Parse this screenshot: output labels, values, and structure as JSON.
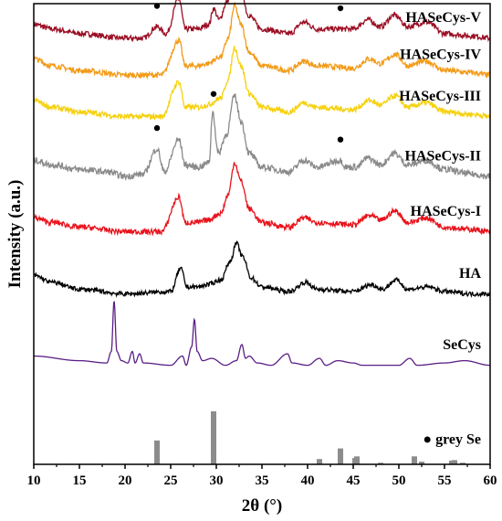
{
  "chart_data": {
    "type": "line",
    "xlabel": "2θ (°)",
    "ylabel": "Intensity (a.u.)",
    "xlim": [
      10,
      60
    ],
    "x_ticks": [
      10,
      15,
      20,
      25,
      30,
      35,
      40,
      45,
      50,
      55,
      60
    ],
    "y_ticks_shown": false,
    "grid": false,
    "series": [
      {
        "name": "HASeCys-V",
        "color": "#9b0f24",
        "offset": 0.925,
        "noise": 0.006,
        "points": [
          [
            10,
            0.03
          ],
          [
            12,
            0.02
          ],
          [
            15,
            0.01
          ],
          [
            20,
            0.0
          ],
          [
            22,
            0.0
          ],
          [
            23.5,
            0.025
          ],
          [
            24.5,
            0.01
          ],
          [
            25.9,
            0.085
          ],
          [
            26.6,
            0.02
          ],
          [
            28,
            0.02
          ],
          [
            29.2,
            0.03
          ],
          [
            29.7,
            0.065
          ],
          [
            30.3,
            0.04
          ],
          [
            31.2,
            0.08
          ],
          [
            32.0,
            0.16
          ],
          [
            32.6,
            0.12
          ],
          [
            33.5,
            0.05
          ],
          [
            35,
            0.02
          ],
          [
            38,
            0.01
          ],
          [
            39.6,
            0.035
          ],
          [
            41,
            0.02
          ],
          [
            43.6,
            0.02
          ],
          [
            45,
            0.02
          ],
          [
            46.6,
            0.04
          ],
          [
            48,
            0.025
          ],
          [
            49.5,
            0.05
          ],
          [
            51,
            0.025
          ],
          [
            53,
            0.035
          ],
          [
            55,
            0.01
          ],
          [
            58,
            0.005
          ],
          [
            60,
            0.0
          ]
        ]
      },
      {
        "name": "HASeCys-IV",
        "color": "#f39b18",
        "offset": 0.845,
        "noise": 0.006,
        "points": [
          [
            10,
            0.035
          ],
          [
            12,
            0.02
          ],
          [
            15,
            0.01
          ],
          [
            20,
            0.0
          ],
          [
            24,
            0.0
          ],
          [
            25.9,
            0.075
          ],
          [
            26.6,
            0.02
          ],
          [
            28,
            0.02
          ],
          [
            29,
            0.025
          ],
          [
            30.5,
            0.04
          ],
          [
            31.3,
            0.08
          ],
          [
            32.0,
            0.15
          ],
          [
            32.7,
            0.11
          ],
          [
            33.6,
            0.05
          ],
          [
            35,
            0.02
          ],
          [
            38,
            0.01
          ],
          [
            39.6,
            0.03
          ],
          [
            41,
            0.02
          ],
          [
            45,
            0.015
          ],
          [
            46.8,
            0.035
          ],
          [
            48,
            0.025
          ],
          [
            49.6,
            0.045
          ],
          [
            51,
            0.02
          ],
          [
            53,
            0.03
          ],
          [
            55,
            0.01
          ],
          [
            58,
            0.005
          ],
          [
            60,
            0.0
          ]
        ]
      },
      {
        "name": "HASeCys-III",
        "color": "#f6d10e",
        "offset": 0.755,
        "noise": 0.006,
        "points": [
          [
            10,
            0.035
          ],
          [
            12,
            0.02
          ],
          [
            15,
            0.01
          ],
          [
            20,
            0.0
          ],
          [
            24,
            0.0
          ],
          [
            25.9,
            0.075
          ],
          [
            26.6,
            0.02
          ],
          [
            28,
            0.02
          ],
          [
            29,
            0.025
          ],
          [
            30.5,
            0.04
          ],
          [
            31.3,
            0.08
          ],
          [
            32.0,
            0.15
          ],
          [
            32.7,
            0.11
          ],
          [
            33.6,
            0.05
          ],
          [
            35,
            0.02
          ],
          [
            38,
            0.01
          ],
          [
            39.6,
            0.03
          ],
          [
            41,
            0.02
          ],
          [
            45,
            0.015
          ],
          [
            46.8,
            0.035
          ],
          [
            48,
            0.025
          ],
          [
            49.6,
            0.045
          ],
          [
            51,
            0.02
          ],
          [
            53,
            0.03
          ],
          [
            55,
            0.01
          ],
          [
            58,
            0.005
          ],
          [
            60,
            0.0
          ]
        ]
      },
      {
        "name": "HASeCys-II",
        "color": "#8a8a8a",
        "offset": 0.625,
        "noise": 0.007,
        "points": [
          [
            10,
            0.035
          ],
          [
            12,
            0.025
          ],
          [
            15,
            0.015
          ],
          [
            18,
            0.01
          ],
          [
            20,
            0.0
          ],
          [
            22,
            0.005
          ],
          [
            23.5,
            0.06
          ],
          [
            24.3,
            0.01
          ],
          [
            25.9,
            0.08
          ],
          [
            26.6,
            0.025
          ],
          [
            28,
            0.02
          ],
          [
            29.2,
            0.03
          ],
          [
            29.6,
            0.14
          ],
          [
            30.2,
            0.05
          ],
          [
            31.1,
            0.09
          ],
          [
            32.0,
            0.175
          ],
          [
            32.7,
            0.12
          ],
          [
            33.6,
            0.05
          ],
          [
            35,
            0.02
          ],
          [
            38,
            0.01
          ],
          [
            39.6,
            0.035
          ],
          [
            41,
            0.02
          ],
          [
            43.6,
            0.035
          ],
          [
            44.2,
            0.02
          ],
          [
            45.3,
            0.02
          ],
          [
            46.6,
            0.04
          ],
          [
            48,
            0.025
          ],
          [
            49.5,
            0.05
          ],
          [
            51,
            0.025
          ],
          [
            53,
            0.035
          ],
          [
            55,
            0.015
          ],
          [
            58,
            0.005
          ],
          [
            60,
            0.0
          ]
        ]
      },
      {
        "name": "HASeCys-I",
        "color": "#e8131c",
        "offset": 0.505,
        "noise": 0.006,
        "points": [
          [
            10,
            0.03
          ],
          [
            12,
            0.02
          ],
          [
            15,
            0.01
          ],
          [
            20,
            0.0
          ],
          [
            24,
            0.0
          ],
          [
            25.9,
            0.075
          ],
          [
            26.6,
            0.02
          ],
          [
            28,
            0.02
          ],
          [
            29,
            0.025
          ],
          [
            30.5,
            0.04
          ],
          [
            31.3,
            0.08
          ],
          [
            32.0,
            0.15
          ],
          [
            32.7,
            0.11
          ],
          [
            33.6,
            0.05
          ],
          [
            35,
            0.02
          ],
          [
            38,
            0.01
          ],
          [
            39.6,
            0.03
          ],
          [
            41,
            0.02
          ],
          [
            45,
            0.015
          ],
          [
            46.8,
            0.035
          ],
          [
            48,
            0.025
          ],
          [
            49.6,
            0.045
          ],
          [
            51,
            0.02
          ],
          [
            53,
            0.03
          ],
          [
            55,
            0.01
          ],
          [
            58,
            0.005
          ],
          [
            60,
            0.0
          ]
        ]
      },
      {
        "name": "HA",
        "color": "#000000",
        "offset": 0.37,
        "noise": 0.005,
        "points": [
          [
            10,
            0.04
          ],
          [
            12,
            0.025
          ],
          [
            15,
            0.01
          ],
          [
            20,
            0.0
          ],
          [
            25,
            0.005
          ],
          [
            26.1,
            0.055
          ],
          [
            26.8,
            0.015
          ],
          [
            28,
            0.015
          ],
          [
            29,
            0.02
          ],
          [
            30.5,
            0.03
          ],
          [
            31.5,
            0.07
          ],
          [
            32.2,
            0.11
          ],
          [
            32.9,
            0.08
          ],
          [
            33.8,
            0.035
          ],
          [
            35,
            0.015
          ],
          [
            38,
            0.005
          ],
          [
            39.8,
            0.025
          ],
          [
            41,
            0.01
          ],
          [
            45,
            0.005
          ],
          [
            47,
            0.02
          ],
          [
            48.2,
            0.01
          ],
          [
            49.7,
            0.03
          ],
          [
            51,
            0.01
          ],
          [
            53.2,
            0.015
          ],
          [
            55,
            0.005
          ],
          [
            58,
            0.0
          ],
          [
            60,
            0.0
          ]
        ]
      },
      {
        "name": "SeCys",
        "color": "#5a1f86",
        "offset": 0.215,
        "noise": 0.0,
        "points": [
          [
            10,
            0.02
          ],
          [
            15,
            0.01
          ],
          [
            18,
            0.005
          ],
          [
            18.5,
            0.03
          ],
          [
            18.8,
            0.14
          ],
          [
            19.1,
            0.03
          ],
          [
            19.6,
            0.01
          ],
          [
            20.3,
            0.005
          ],
          [
            20.8,
            0.03
          ],
          [
            21.1,
            0.005
          ],
          [
            21.6,
            0.025
          ],
          [
            22,
            0.005
          ],
          [
            25,
            0.0
          ],
          [
            26.3,
            0.02
          ],
          [
            26.7,
            0.0
          ],
          [
            27.3,
            0.04
          ],
          [
            27.6,
            0.1
          ],
          [
            27.9,
            0.03
          ],
          [
            28.5,
            0.01
          ],
          [
            29.5,
            0.015
          ],
          [
            31,
            0.0
          ],
          [
            32.2,
            0.01
          ],
          [
            32.8,
            0.045
          ],
          [
            33.2,
            0.015
          ],
          [
            33.6,
            0.02
          ],
          [
            34.5,
            0.005
          ],
          [
            36,
            0.0
          ],
          [
            37.8,
            0.025
          ],
          [
            38.3,
            0.005
          ],
          [
            40,
            0.0
          ],
          [
            41.3,
            0.015
          ],
          [
            42,
            0.0
          ],
          [
            43.3,
            0.01
          ],
          [
            45,
            0.005
          ],
          [
            46,
            0.0
          ],
          [
            50,
            0.0
          ],
          [
            51.2,
            0.015
          ],
          [
            52,
            0.0
          ],
          [
            55,
            0.005
          ],
          [
            57.2,
            0.01
          ],
          [
            60,
            0.0
          ]
        ]
      }
    ],
    "reference": {
      "name": "grey Se",
      "color": "#8c8c8c",
      "bars": [
        [
          23.5,
          0.45
        ],
        [
          29.7,
          1.0
        ],
        [
          41.3,
          0.1
        ],
        [
          43.6,
          0.3
        ],
        [
          45.2,
          0.12
        ],
        [
          45.4,
          0.15
        ],
        [
          48.0,
          0.03
        ],
        [
          51.7,
          0.15
        ],
        [
          52.5,
          0.05
        ],
        [
          55.8,
          0.07
        ],
        [
          56.1,
          0.08
        ],
        [
          57.0,
          0.03
        ]
      ]
    },
    "markers": [
      {
        "x": 23.5,
        "series": "HASeCys-V"
      },
      {
        "x": 29.7,
        "series": "HASeCys-V"
      },
      {
        "x": 43.6,
        "series": "HASeCys-V"
      },
      {
        "x": 23.5,
        "series": "HASeCys-II"
      },
      {
        "x": 29.7,
        "series": "HASeCys-II"
      },
      {
        "x": 43.6,
        "series": "HASeCys-II"
      }
    ],
    "legend_symbol": "●"
  }
}
